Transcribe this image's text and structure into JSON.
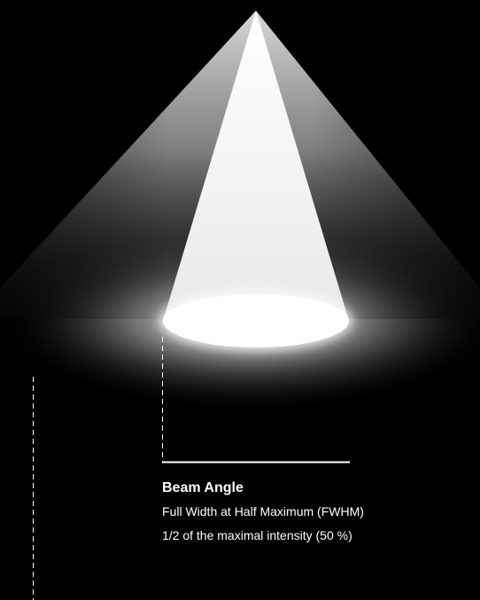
{
  "label": {
    "title": "Beam Angle",
    "lines": [
      "Full Width at Half Maximum (FWHM)",
      "1/2 of the maximal intensity (50 %)"
    ]
  }
}
